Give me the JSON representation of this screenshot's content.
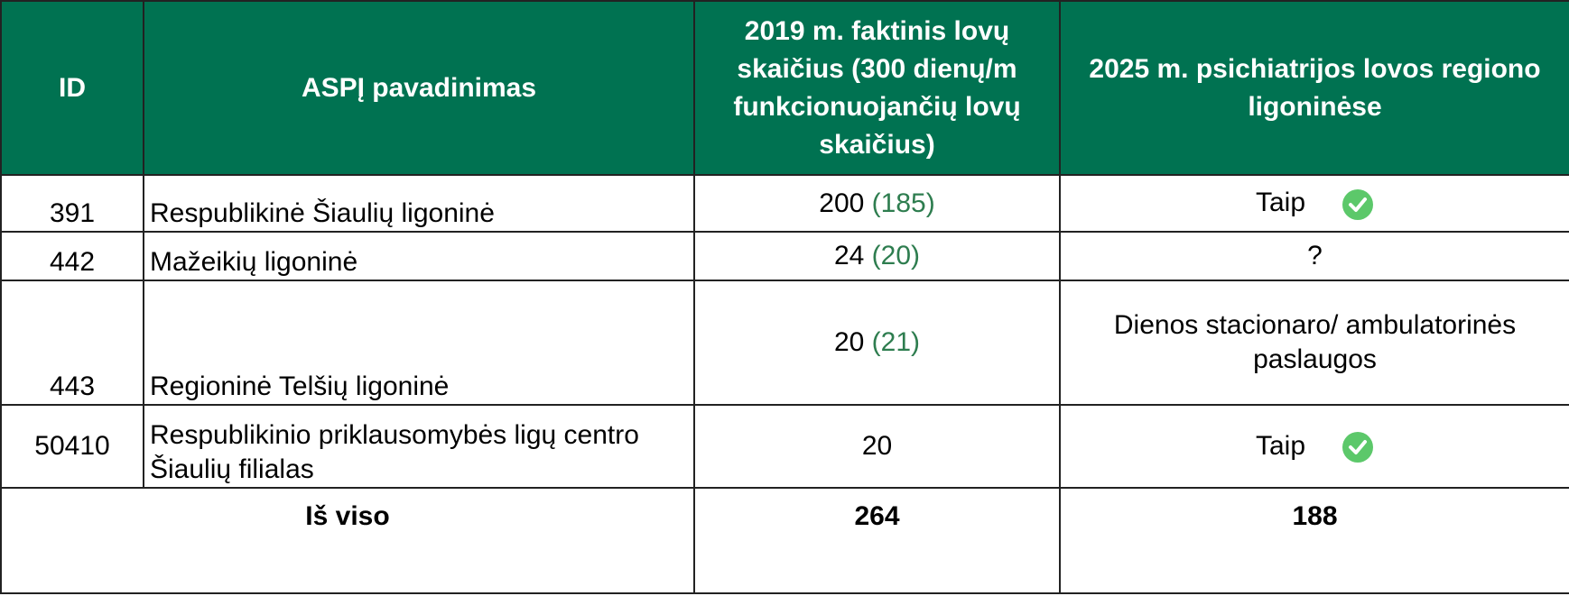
{
  "table": {
    "header": [
      "ID",
      "ASPĮ pavadinimas",
      "2019 m. faktinis lovų skaičius (300 dienų/m funkcionuojančių lovų skaičius)",
      "2025 m. psichiatrijos lovos regiono ligoninėse"
    ],
    "rows": [
      {
        "id": "391",
        "name": "Respublikinė Šiaulių ligoninė",
        "beds": "200",
        "beds_note": "(185)",
        "status": "Taip"
      },
      {
        "id": "442",
        "name": "Mažeikių ligoninė",
        "beds": "24",
        "beds_note": "(20)",
        "status": "?"
      },
      {
        "id": "443",
        "name": "Regioninė Telšių ligoninė",
        "beds": "20",
        "beds_note": "(21)",
        "status": "Dienos stacionaro/ ambulatorinės paslaugos"
      },
      {
        "id": "50410",
        "name": "Respublikinio priklausomybės ligų centro Šiaulių filialas",
        "beds": "20",
        "status": "Taip"
      }
    ],
    "total": {
      "label": "Iš viso",
      "beds": "264",
      "status": "188"
    }
  }
}
